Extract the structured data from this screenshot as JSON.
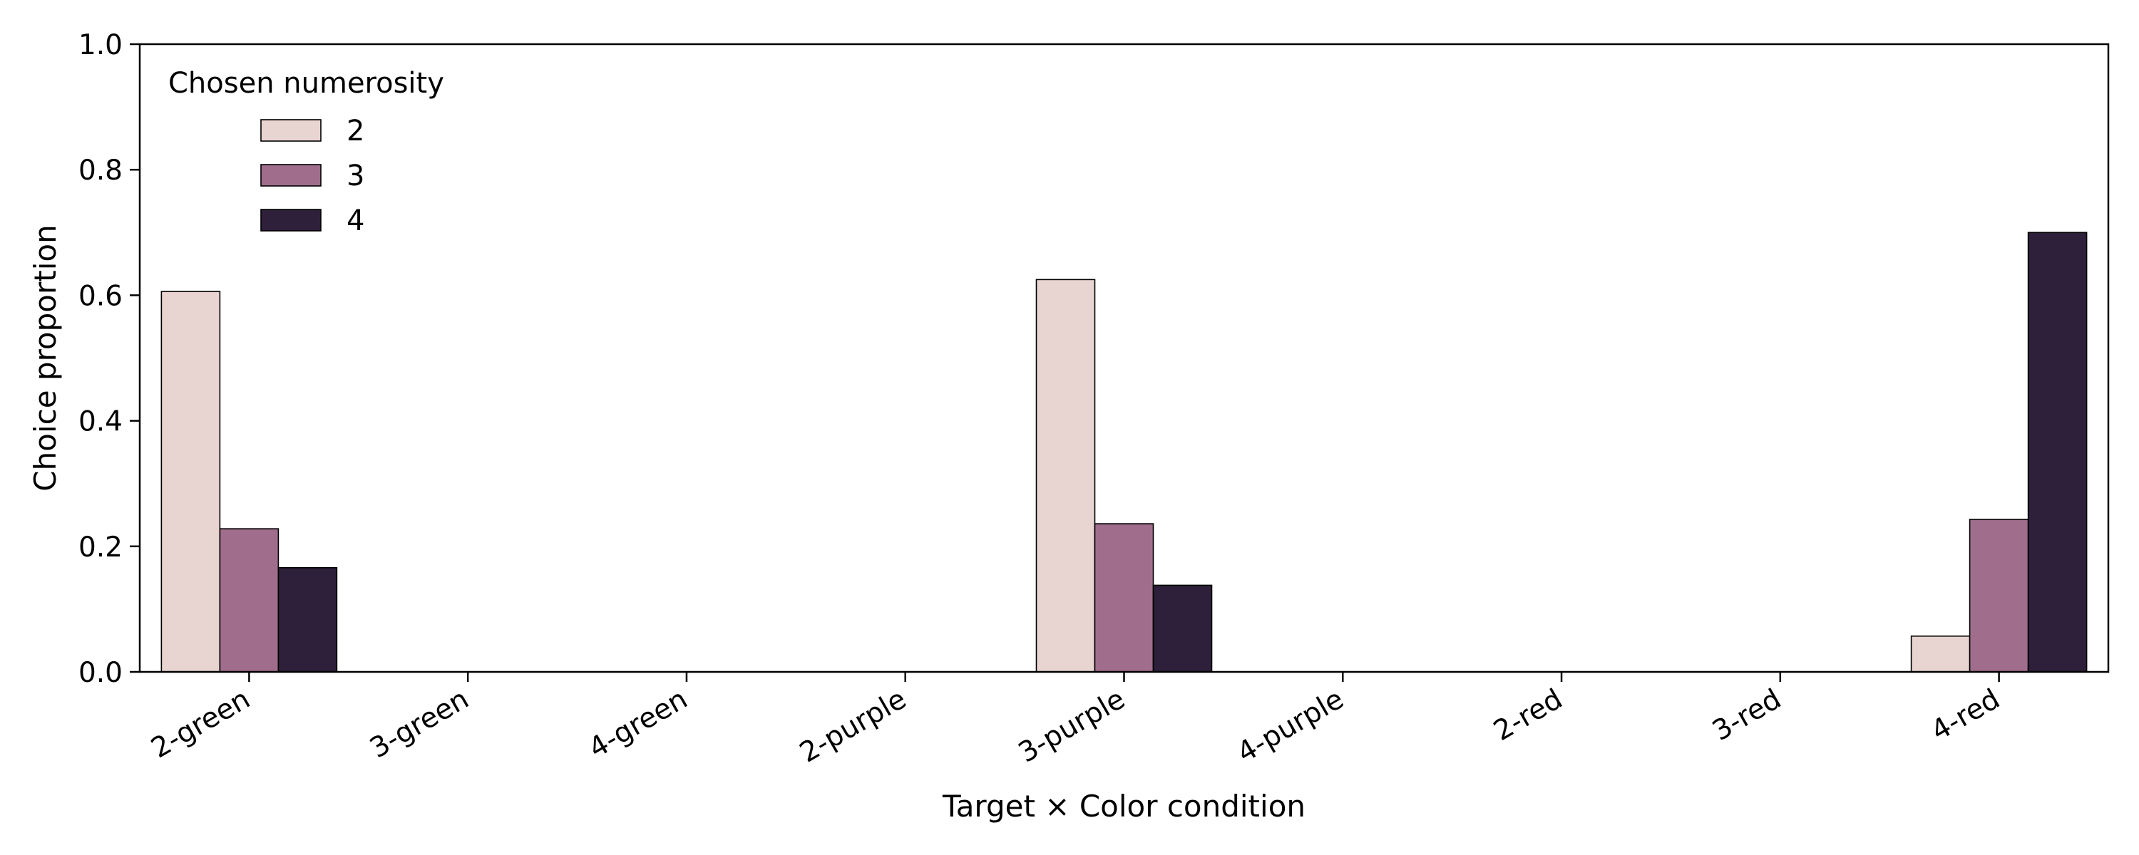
{
  "chart_data": {
    "type": "bar",
    "title": "",
    "xlabel": "Target × Color condition",
    "ylabel": "Choice proportion",
    "ylim": [
      0,
      1.0
    ],
    "yticks": [
      0.0,
      0.2,
      0.4,
      0.6,
      0.8,
      1.0
    ],
    "ytick_labels": [
      "0.0",
      "0.2",
      "0.4",
      "0.6",
      "0.8",
      "1.0"
    ],
    "categories": [
      "2-green",
      "3-green",
      "4-green",
      "2-purple",
      "3-purple",
      "4-purple",
      "2-red",
      "3-red",
      "4-red"
    ],
    "legend": {
      "title": "Chosen numerosity",
      "position": "top-left"
    },
    "grid": false,
    "series": [
      {
        "name": "2",
        "color": "#e8d4d0",
        "values": [
          0.606,
          null,
          null,
          null,
          0.625,
          null,
          null,
          null,
          0.057
        ]
      },
      {
        "name": "3",
        "color": "#a06e8c",
        "values": [
          0.228,
          null,
          null,
          null,
          0.236,
          null,
          null,
          null,
          0.243
        ]
      },
      {
        "name": "4",
        "color": "#2e1f3a",
        "values": [
          0.166,
          null,
          null,
          null,
          0.138,
          null,
          null,
          null,
          0.7
        ]
      }
    ]
  }
}
